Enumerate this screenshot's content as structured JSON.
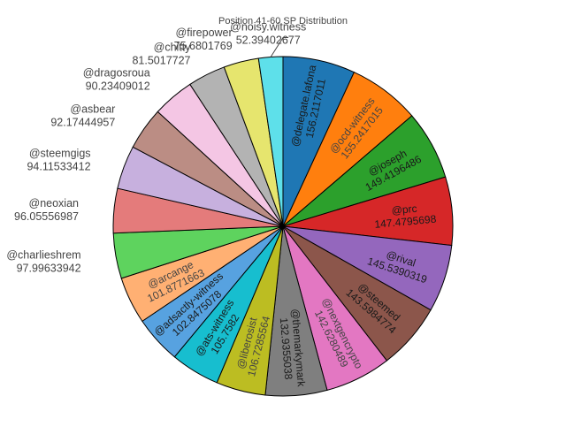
{
  "chart_data": {
    "type": "pie",
    "title": "Position 41-60 SP Distribution",
    "sort": "descending",
    "direction": "clockwise",
    "start": "12 o'clock",
    "slices": [
      {
        "label": "@delegate.lafona",
        "value": "156.2117011",
        "color": "#1f77b4"
      },
      {
        "label": "@ocd-witness",
        "value": "155.2417015",
        "color": "#ff7f0e"
      },
      {
        "label": "@joseph",
        "value": "149.4196486",
        "color": "#2ca02c"
      },
      {
        "label": "@prc",
        "value": "147.4795698",
        "color": "#d62728"
      },
      {
        "label": "@rival",
        "value": "145.5390319",
        "color": "#9467bd"
      },
      {
        "label": "@steemed",
        "value": "143.5984774",
        "color": "#8c564b"
      },
      {
        "label": "@nextgencrypto",
        "value": "142.6280489",
        "color": "#e377c2"
      },
      {
        "label": "@themarkymark",
        "value": "132.9355038",
        "color": "#7f7f7f"
      },
      {
        "label": "@liberosist",
        "value": "106.7285564",
        "color": "#bcbd22"
      },
      {
        "label": "@ats-witness",
        "value": "105.7582",
        "color": "#17becf"
      },
      {
        "label": "@adsactly-witness",
        "value": "102.8475078",
        "color": "#57a2e0"
      },
      {
        "label": "@arcange",
        "value": "101.8771663",
        "color": "#ffb073"
      },
      {
        "label": "@charlieshrem",
        "value": "97.99633942",
        "color": "#5ed35e"
      },
      {
        "label": "@neoxian",
        "value": "96.05556987",
        "color": "#e47b7b"
      },
      {
        "label": "@steemgigs",
        "value": "94.11533412",
        "color": "#c7b0de"
      },
      {
        "label": "@asbear",
        "value": "92.17444957",
        "color": "#bb8d84"
      },
      {
        "label": "@dragosroua",
        "value": "90.23409012",
        "color": "#f4c6e4"
      },
      {
        "label": "@chitty",
        "value": "81.5017727",
        "color": "#b3b3b3"
      },
      {
        "label": "@firepower",
        "value": "75.6801769",
        "color": "#e6e56e"
      },
      {
        "label": "@noisy.witness",
        "value": "52.39402677",
        "color": "#5ee0ea"
      }
    ]
  }
}
